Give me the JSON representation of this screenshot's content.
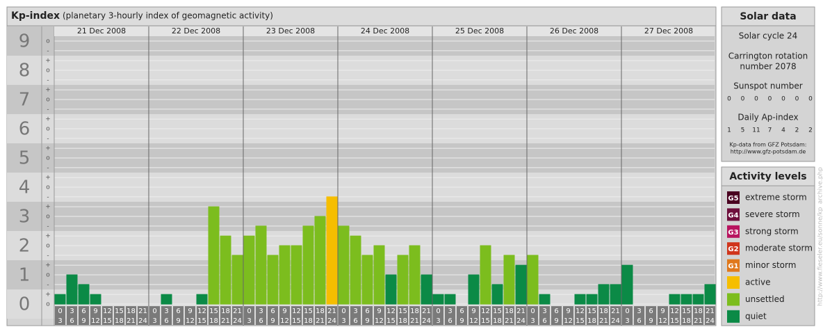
{
  "header": {
    "title": "Kp-index",
    "subtitle": "(planetary 3-hourly index of geomagnetic activity)"
  },
  "chart_data": {
    "type": "bar",
    "days": [
      "21 Dec 2008",
      "22 Dec 2008",
      "23 Dec 2008",
      "24 Dec 2008",
      "25 Dec 2008",
      "26 Dec 2008",
      "27 Dec 2008"
    ],
    "time_from": [
      "0",
      "3",
      "6",
      "9",
      "12",
      "15",
      "18",
      "21"
    ],
    "time_to": [
      "3",
      "6",
      "9",
      "12",
      "15",
      "18",
      "21",
      "24"
    ],
    "values": [
      0.33,
      1,
      0.67,
      0.33,
      0,
      0,
      0,
      0,
      0,
      0.33,
      0,
      0,
      0.33,
      3.33,
      2.33,
      1.67,
      2.33,
      2.67,
      1.67,
      2,
      2,
      2.67,
      3,
      3.67,
      2.67,
      2.33,
      1.67,
      2,
      1,
      1.67,
      2,
      1,
      0.33,
      0.33,
      0,
      1,
      2,
      0.67,
      1.67,
      1.33,
      1.67,
      0.33,
      0,
      0,
      0.33,
      0.33,
      0.67,
      0.67,
      1.33,
      0,
      0,
      0,
      0.33,
      0.33,
      0.33,
      0.67
    ],
    "colors": [
      "#0b8a46",
      "#0b8a46",
      "#0b8a46",
      "#0b8a46",
      "#0b8a46",
      "#0b8a46",
      "#0b8a46",
      "#0b8a46",
      "#0b8a46",
      "#0b8a46",
      "#0b8a46",
      "#0b8a46",
      "#0b8a46",
      "#7cbd1e",
      "#7cbd1e",
      "#7cbd1e",
      "#7cbd1e",
      "#7cbd1e",
      "#7cbd1e",
      "#7cbd1e",
      "#7cbd1e",
      "#7cbd1e",
      "#7cbd1e",
      "#f6be00",
      "#7cbd1e",
      "#7cbd1e",
      "#7cbd1e",
      "#7cbd1e",
      "#0b8a46",
      "#7cbd1e",
      "#7cbd1e",
      "#0b8a46",
      "#0b8a46",
      "#0b8a46",
      "#0b8a46",
      "#0b8a46",
      "#7cbd1e",
      "#0b8a46",
      "#7cbd1e",
      "#0b8a46",
      "#7cbd1e",
      "#0b8a46",
      "#0b8a46",
      "#0b8a46",
      "#0b8a46",
      "#0b8a46",
      "#0b8a46",
      "#0b8a46",
      "#0b8a46",
      "#0b8a46",
      "#0b8a46",
      "#0b8a46",
      "#0b8a46",
      "#0b8a46",
      "#0b8a46",
      "#0b8a46"
    ],
    "ylim": [
      0,
      9
    ],
    "yticks": [
      0,
      1,
      2,
      3,
      4,
      5,
      6,
      7,
      8,
      9
    ],
    "yticks_minor": [
      {
        "value": 0,
        "label": "o"
      },
      {
        "value": 0.33,
        "label": "+"
      },
      {
        "value": 0.67,
        "label": "-"
      },
      {
        "value": 1,
        "label": "o"
      },
      {
        "value": 1.33,
        "label": "+"
      },
      {
        "value": 1.67,
        "label": "-"
      },
      {
        "value": 2,
        "label": "o"
      },
      {
        "value": 2.33,
        "label": "+"
      },
      {
        "value": 2.67,
        "label": "-"
      },
      {
        "value": 3,
        "label": "o"
      },
      {
        "value": 3.33,
        "label": "+"
      },
      {
        "value": 3.67,
        "label": "-"
      },
      {
        "value": 4,
        "label": "o"
      },
      {
        "value": 4.33,
        "label": "+"
      },
      {
        "value": 4.67,
        "label": "-"
      },
      {
        "value": 5,
        "label": "o"
      },
      {
        "value": 5.33,
        "label": "+"
      },
      {
        "value": 5.67,
        "label": "-"
      },
      {
        "value": 6,
        "label": "o"
      },
      {
        "value": 6.33,
        "label": "+"
      },
      {
        "value": 6.67,
        "label": "-"
      },
      {
        "value": 7,
        "label": "o"
      },
      {
        "value": 7.33,
        "label": "+"
      },
      {
        "value": 7.67,
        "label": "-"
      },
      {
        "value": 8,
        "label": "o"
      },
      {
        "value": 8.33,
        "label": "+"
      },
      {
        "value": 8.67,
        "label": "-"
      },
      {
        "value": 9,
        "label": "o"
      }
    ]
  },
  "solar_data": {
    "title": "Solar data",
    "cycle": "Solar cycle 24",
    "carrington_1": "Carrington rotation",
    "carrington_2": "number 2078",
    "sunspot_title": "Sunspot number",
    "sunspot": [
      "0",
      "0",
      "0",
      "0",
      "0",
      "0",
      "0"
    ],
    "ap_title": "Daily Ap-index",
    "ap": [
      "1",
      "5",
      "11",
      "7",
      "4",
      "2",
      "2"
    ],
    "source_1": "Kp-data from GFZ Potsdam:",
    "source_2": "http://www.gfz-potsdam.de"
  },
  "activity_levels": {
    "title": "Activity levels",
    "items": [
      {
        "badge": "G5",
        "label": "extreme storm",
        "color": "#4a0020"
      },
      {
        "badge": "G4",
        "label": "severe storm",
        "color": "#6e0f3c"
      },
      {
        "badge": "G3",
        "label": "strong storm",
        "color": "#b8145f"
      },
      {
        "badge": "G2",
        "label": "moderate storm",
        "color": "#d0351c"
      },
      {
        "badge": "G1",
        "label": "minor storm",
        "color": "#e0781c"
      },
      {
        "label": "active",
        "color": "#f6be00"
      },
      {
        "label": "unsettled",
        "color": "#7cbd1e"
      },
      {
        "label": "quiet",
        "color": "#0b8a46"
      }
    ]
  },
  "source_url": "http://www.fieseler.eu/sonne/kp_archive.php"
}
